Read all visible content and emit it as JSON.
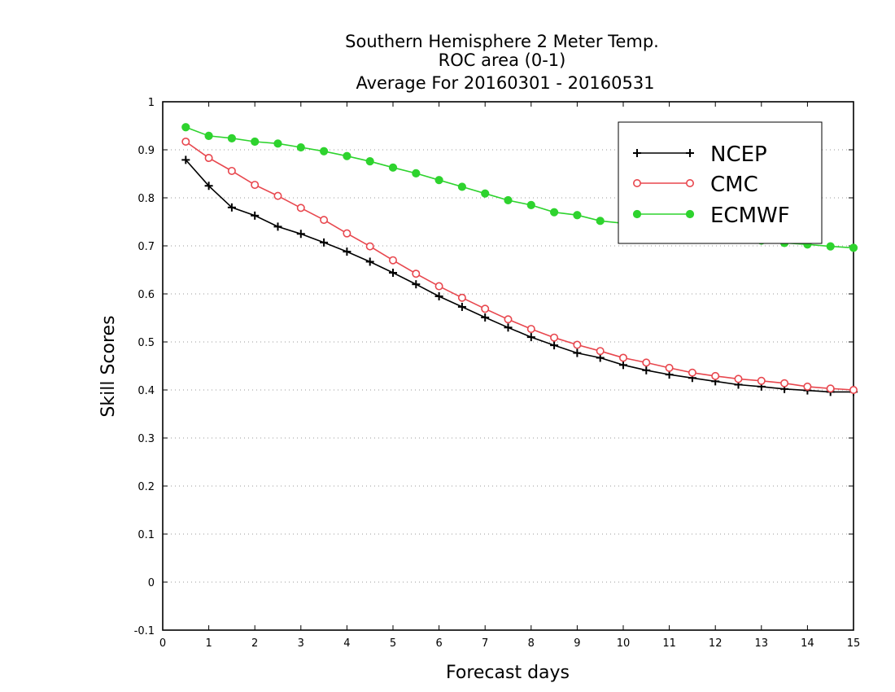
{
  "chart_data": {
    "type": "line",
    "title": [
      "Southern Hemisphere 2 Meter Temp.",
      "ROC area (0-1)",
      "Average For 20160301 - 20160531"
    ],
    "xlabel": "Forecast days",
    "ylabel": "Skill Scores",
    "xlim": [
      0,
      15
    ],
    "ylim": [
      -0.1,
      1
    ],
    "xticks": [
      0,
      1,
      2,
      3,
      4,
      5,
      6,
      7,
      8,
      9,
      10,
      11,
      12,
      13,
      14,
      15
    ],
    "yticks": [
      -0.1,
      0,
      0.1,
      0.2,
      0.3,
      0.4,
      0.5,
      0.6,
      0.7,
      0.8,
      0.9,
      1
    ],
    "ytick_labels": [
      "-0.1",
      "0",
      "0.1",
      "0.2",
      "0.3",
      "0.4",
      "0.5",
      "0.6",
      "0.7",
      "0.8",
      "0.9",
      "1"
    ],
    "grid": "horizontal-dotted",
    "legend_position": "top-right",
    "x": [
      0.5,
      1,
      1.5,
      2,
      2.5,
      3,
      3.5,
      4,
      4.5,
      5,
      5.5,
      6,
      6.5,
      7,
      7.5,
      8,
      8.5,
      9,
      9.5,
      10,
      10.5,
      11,
      11.5,
      12,
      12.5,
      13,
      13.5,
      14,
      14.5,
      15
    ],
    "series": [
      {
        "name": "NCEP",
        "color": "#000000",
        "marker": "plus",
        "values": [
          0.879,
          0.825,
          0.78,
          0.763,
          0.74,
          0.725,
          0.707,
          0.688,
          0.667,
          0.644,
          0.62,
          0.595,
          0.573,
          0.551,
          0.53,
          0.51,
          0.493,
          0.477,
          0.467,
          0.452,
          0.441,
          0.432,
          0.425,
          0.418,
          0.411,
          0.407,
          0.402,
          0.399,
          0.396,
          0.396
        ]
      },
      {
        "name": "CMC",
        "color": "#e8474e",
        "marker": "open-circle",
        "values": [
          0.917,
          0.883,
          0.856,
          0.827,
          0.804,
          0.779,
          0.754,
          0.726,
          0.699,
          0.67,
          0.642,
          0.616,
          0.592,
          0.569,
          0.547,
          0.527,
          0.509,
          0.494,
          0.481,
          0.467,
          0.457,
          0.446,
          0.436,
          0.429,
          0.423,
          0.419,
          0.414,
          0.407,
          0.403,
          0.4
        ]
      },
      {
        "name": "ECMWF",
        "color": "#2ed32e",
        "marker": "filled-circle",
        "values": [
          0.947,
          0.929,
          0.924,
          0.917,
          0.913,
          0.905,
          0.897,
          0.887,
          0.876,
          0.863,
          0.851,
          0.837,
          0.823,
          0.809,
          0.795,
          0.785,
          0.77,
          0.764,
          0.752,
          0.747,
          0.74,
          0.733,
          0.727,
          0.72,
          0.716,
          0.711,
          0.706,
          0.703,
          0.699,
          0.696
        ]
      }
    ]
  }
}
